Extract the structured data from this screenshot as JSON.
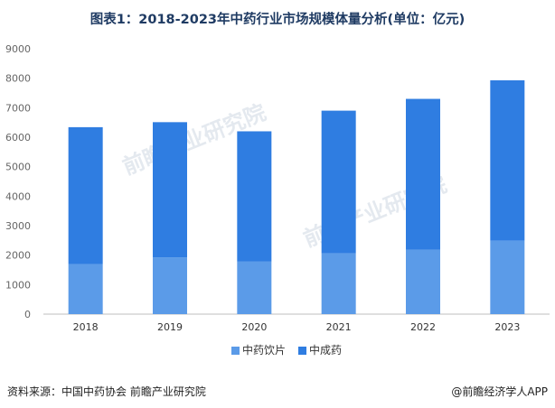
{
  "title": "图表1：2018-2023年中药行业市场规模体量分析(单位：亿元)",
  "footer": {
    "source": "资料来源：中国中药协会 前瞻产业研究院",
    "brand": "@前瞻经济学人APP"
  },
  "watermark": "前瞻产业研究院",
  "colors": {
    "series1": "#5b9be8",
    "series2": "#2f7de1",
    "axis": "#666666",
    "grid": "#e6e6e6"
  },
  "chart_data": {
    "type": "bar",
    "stacked": true,
    "categories": [
      "2018",
      "2019",
      "2020",
      "2021",
      "2022",
      "2023"
    ],
    "series": [
      {
        "name": "中药饮片",
        "values": [
          1700,
          1920,
          1780,
          2060,
          2180,
          2490
        ]
      },
      {
        "name": "中成药",
        "values": [
          4640,
          4590,
          4420,
          4840,
          5120,
          5440
        ]
      }
    ],
    "ylim": [
      0,
      9000
    ],
    "yticks": [
      0,
      1000,
      2000,
      3000,
      4000,
      5000,
      6000,
      7000,
      8000,
      9000
    ],
    "grid": false,
    "legend": "bottom"
  }
}
